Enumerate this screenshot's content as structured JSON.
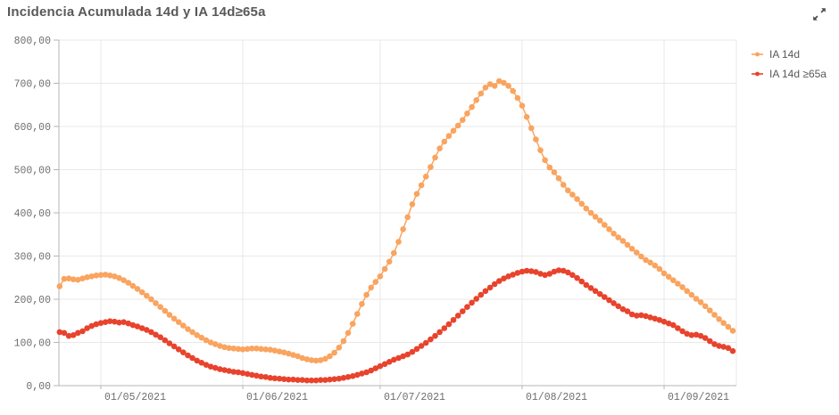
{
  "widget": {
    "title": "Incidencia Acumulada 14d y IA 14d≥65a",
    "expand_icon": "expand-arrows-icon"
  },
  "colors": {
    "series_ia14d": "#F9A45F",
    "series_ia14d_65a": "#E8432D",
    "title_text": "#595959",
    "axis_text": "#6E6E6E",
    "gridline": "#E8E8E8",
    "axis_line": "#B5B5B5",
    "background": "#FFFFFF"
  },
  "legend": {
    "position": "right-top",
    "items": [
      {
        "label": "IA 14d",
        "color": "#F9A45F"
      },
      {
        "label": "IA 14d ≥65a",
        "color": "#E8432D"
      }
    ]
  },
  "chart_data": {
    "type": "line",
    "title": "Incidencia Acumulada 14d y IA 14d≥65a",
    "x_frequency": "daily",
    "x_start_date": "22/04/2021",
    "x_end_date": "16/09/2021",
    "ylim": [
      0,
      800
    ],
    "grid": true,
    "markers": true,
    "legend_position": "right-top",
    "y_ticks": [
      {
        "v": 0,
        "label": "0,00"
      },
      {
        "v": 100,
        "label": "100,00"
      },
      {
        "v": 200,
        "label": "200,00"
      },
      {
        "v": 300,
        "label": "300,00"
      },
      {
        "v": 400,
        "label": "400,00"
      },
      {
        "v": 500,
        "label": "500,00"
      },
      {
        "v": 600,
        "label": "600,00"
      },
      {
        "v": 700,
        "label": "700,00"
      },
      {
        "v": 800,
        "label": "800,00"
      }
    ],
    "x_ticks": [
      {
        "index": 9,
        "label": "01/05/2021"
      },
      {
        "index": 40,
        "label": "01/06/2021"
      },
      {
        "index": 70,
        "label": "01/07/2021"
      },
      {
        "index": 101,
        "label": "01/08/2021"
      },
      {
        "index": 132,
        "label": "01/09/2021"
      }
    ],
    "series": [
      {
        "name": "IA 14d",
        "color": "#F9A45F",
        "values": [
          230,
          247,
          248,
          246,
          245,
          248,
          251,
          253,
          255,
          256,
          257,
          255,
          253,
          249,
          244,
          238,
          231,
          224,
          216,
          208,
          200,
          191,
          182,
          173,
          164,
          155,
          147,
          139,
          131,
          124,
          117,
          111,
          105,
          100,
          96,
          92,
          89,
          87,
          86,
          85,
          84,
          85,
          86,
          86,
          85,
          84,
          83,
          81,
          79,
          77,
          74,
          71,
          68,
          64,
          61,
          59,
          58,
          59,
          62,
          68,
          76,
          88,
          103,
          122,
          143,
          166,
          189,
          210,
          227,
          240,
          253,
          270,
          287,
          307,
          333,
          362,
          390,
          420,
          444,
          464,
          484,
          506,
          528,
          549,
          565,
          578,
          590,
          602,
          615,
          630,
          645,
          661,
          676,
          690,
          698,
          694,
          705,
          701,
          694,
          682,
          666,
          648,
          622,
          596,
          570,
          545,
          522,
          505,
          494,
          480,
          465,
          452,
          442,
          432,
          421,
          410,
          400,
          391,
          382,
          372,
          362,
          352,
          343,
          335,
          326,
          317,
          308,
          299,
          291,
          285,
          278,
          270,
          260,
          252,
          244,
          236,
          228,
          219,
          210,
          201,
          193,
          184,
          174,
          164,
          154,
          145,
          136,
          127
        ]
      },
      {
        "name": "IA 14d ≥65a",
        "color": "#E8432D",
        "values": [
          124,
          122,
          115,
          117,
          122,
          126,
          133,
          138,
          142,
          145,
          147,
          149,
          148,
          146,
          147,
          144,
          140,
          137,
          133,
          129,
          124,
          118,
          112,
          105,
          98,
          91,
          84,
          77,
          70,
          64,
          58,
          53,
          48,
          44,
          41,
          38,
          36,
          34,
          32,
          31,
          29,
          27,
          25,
          23,
          21,
          20,
          18,
          17,
          16,
          15,
          14,
          14,
          13,
          13,
          12,
          12,
          12,
          13,
          13,
          14,
          15,
          16,
          18,
          20,
          22,
          25,
          28,
          31,
          35,
          40,
          45,
          50,
          55,
          60,
          64,
          68,
          72,
          78,
          85,
          92,
          99,
          107,
          115,
          124,
          133,
          142,
          152,
          162,
          172,
          182,
          192,
          201,
          210,
          219,
          227,
          235,
          242,
          248,
          253,
          257,
          261,
          264,
          266,
          265,
          263,
          259,
          256,
          259,
          264,
          267,
          266,
          262,
          256,
          249,
          241,
          233,
          226,
          219,
          212,
          205,
          198,
          191,
          184,
          177,
          172,
          165,
          162,
          163,
          161,
          158,
          155,
          152,
          148,
          144,
          140,
          133,
          126,
          120,
          117,
          118,
          115,
          110,
          103,
          96,
          92,
          90,
          87,
          80
        ]
      }
    ]
  }
}
